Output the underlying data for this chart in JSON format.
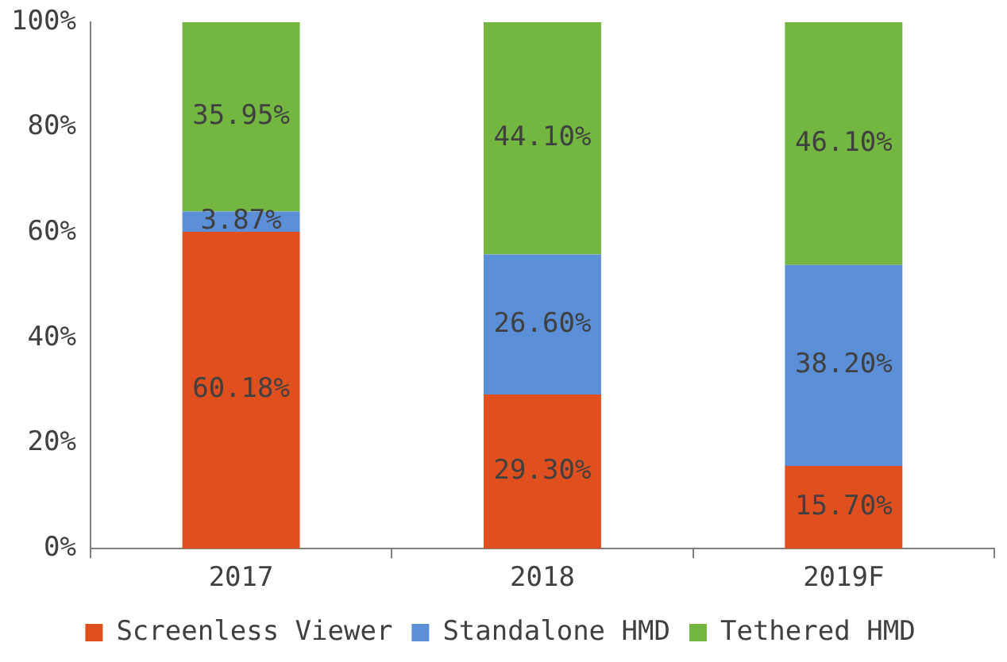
{
  "chart_data": {
    "type": "bar",
    "stacked": true,
    "categories": [
      "2017",
      "2018",
      "2019F"
    ],
    "series": [
      {
        "name": "Screenless Viewer",
        "color": "#e0501e",
        "values": [
          60.18,
          29.3,
          15.7
        ],
        "value_labels": [
          "60.18%",
          "29.30%",
          "15.70%"
        ]
      },
      {
        "name": "Standalone HMD",
        "color": "#5b8fd8",
        "values": [
          3.87,
          26.6,
          38.2
        ],
        "value_labels": [
          "3.87%",
          "26.60%",
          "38.20%"
        ]
      },
      {
        "name": "Tethered HMD",
        "color": "#73b640",
        "values": [
          35.95,
          44.1,
          46.1
        ],
        "value_labels": [
          "35.95%",
          "44.10%",
          "46.10%"
        ]
      }
    ],
    "ylim": [
      0,
      100
    ],
    "yticks": [
      {
        "value": 0,
        "label": "0%"
      },
      {
        "value": 20,
        "label": "20%"
      },
      {
        "value": 40,
        "label": "40%"
      },
      {
        "value": 60,
        "label": "60%"
      },
      {
        "value": 80,
        "label": "80%"
      },
      {
        "value": 100,
        "label": "100%"
      }
    ],
    "grid": false,
    "legend": "bottom"
  }
}
